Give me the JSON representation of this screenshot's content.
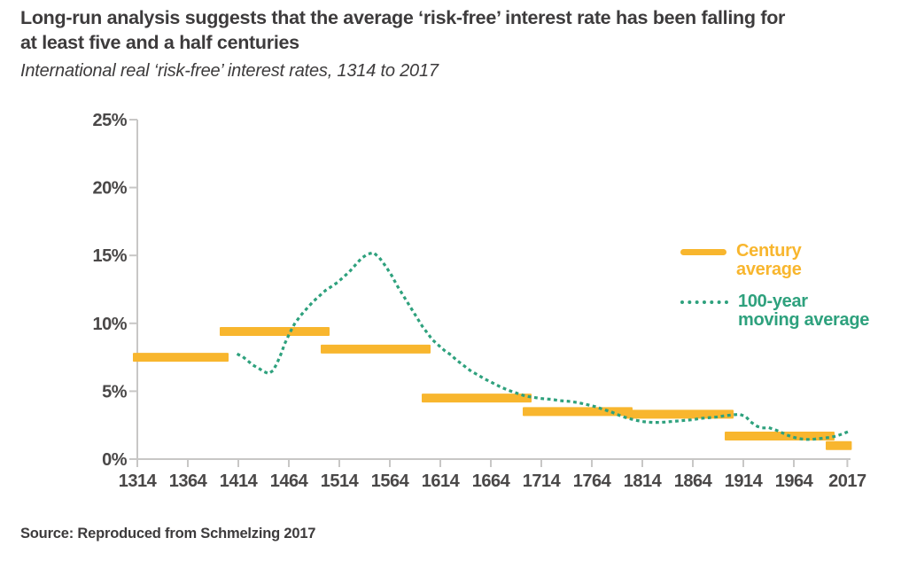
{
  "header": {
    "title_line1": "Long-run analysis suggests that the average ‘risk-free’ interest rate has been falling for",
    "title_line2": "at least five and a half centuries",
    "subtitle": "International real ‘risk-free’ interest rates, 1314 to 2017"
  },
  "source": "Source: Reproduced from Schmelzing 2017",
  "colors": {
    "century_average": "#F8B62E",
    "moving_average": "#2EA17D",
    "axis": "#C8C7C6",
    "tick_label": "#4A4848",
    "title_text": "#3D3B3C"
  },
  "chart_data": {
    "type": "combo",
    "title": "International real ‘risk-free’ interest rates, 1314 to 2017",
    "xlabel": "",
    "ylabel": "",
    "grid": "off",
    "legend_position": "right-middle",
    "x_axis": {
      "range": [
        1314,
        2020
      ],
      "ticks": [
        {
          "year": 1314,
          "label": "1314"
        },
        {
          "year": 1364,
          "label": "1364"
        },
        {
          "year": 1414,
          "label": "1414"
        },
        {
          "year": 1464,
          "label": "1464"
        },
        {
          "year": 1514,
          "label": "1514"
        },
        {
          "year": 1564,
          "label": "1564"
        },
        {
          "year": 1614,
          "label": "1614"
        },
        {
          "year": 1664,
          "label": "1664"
        },
        {
          "year": 1714,
          "label": "1714"
        },
        {
          "year": 1764,
          "label": "1764"
        },
        {
          "year": 1814,
          "label": "1814"
        },
        {
          "year": 1864,
          "label": "1864"
        },
        {
          "year": 1914,
          "label": "1914"
        },
        {
          "year": 1964,
          "label": "1964"
        },
        {
          "year": 2017,
          "label": "2017"
        }
      ]
    },
    "y_axis": {
      "range": [
        0,
        25
      ],
      "unit": "%",
      "ticks": [
        {
          "value": 0,
          "label": "0%"
        },
        {
          "value": 5,
          "label": "5%"
        },
        {
          "value": 10,
          "label": "10%"
        },
        {
          "value": 15,
          "label": "15%"
        },
        {
          "value": 20,
          "label": "20%"
        },
        {
          "value": 25,
          "label": "25%"
        }
      ]
    },
    "series": [
      {
        "name": "Century average",
        "type": "bar",
        "style": "horizontal-segments",
        "color": "#F8B62E",
        "unit": "%",
        "segments": [
          {
            "start": 1314,
            "end": 1400,
            "value": 7.5
          },
          {
            "start": 1400,
            "end": 1500,
            "value": 9.4
          },
          {
            "start": 1500,
            "end": 1600,
            "value": 8.1
          },
          {
            "start": 1600,
            "end": 1700,
            "value": 4.5
          },
          {
            "start": 1700,
            "end": 1800,
            "value": 3.5
          },
          {
            "start": 1800,
            "end": 1900,
            "value": 3.3
          },
          {
            "start": 1900,
            "end": 2000,
            "value": 1.7
          },
          {
            "start": 2000,
            "end": 2017,
            "value": 1.0
          }
        ]
      },
      {
        "name": "100-year moving average",
        "type": "line",
        "style": "dotted",
        "color": "#2EA17D",
        "unit": "%",
        "points": [
          [
            1414,
            7.7
          ],
          [
            1419,
            7.5
          ],
          [
            1424,
            7.2
          ],
          [
            1429,
            6.9
          ],
          [
            1434,
            6.7
          ],
          [
            1439,
            6.45
          ],
          [
            1444,
            6.3
          ],
          [
            1448,
            6.5
          ],
          [
            1452,
            7.0
          ],
          [
            1456,
            7.7
          ],
          [
            1460,
            8.5
          ],
          [
            1465,
            9.3
          ],
          [
            1470,
            10.0
          ],
          [
            1476,
            10.6
          ],
          [
            1482,
            11.1
          ],
          [
            1488,
            11.6
          ],
          [
            1494,
            12.0
          ],
          [
            1500,
            12.4
          ],
          [
            1506,
            12.7
          ],
          [
            1512,
            13.0
          ],
          [
            1518,
            13.4
          ],
          [
            1524,
            13.8
          ],
          [
            1530,
            14.3
          ],
          [
            1536,
            14.8
          ],
          [
            1542,
            15.1
          ],
          [
            1548,
            15.2
          ],
          [
            1554,
            14.8
          ],
          [
            1560,
            14.2
          ],
          [
            1566,
            13.5
          ],
          [
            1571,
            12.8
          ],
          [
            1576,
            12.2
          ],
          [
            1581,
            11.6
          ],
          [
            1586,
            11.0
          ],
          [
            1591,
            10.4
          ],
          [
            1596,
            9.8
          ],
          [
            1601,
            9.3
          ],
          [
            1606,
            8.8
          ],
          [
            1612,
            8.4
          ],
          [
            1618,
            8.0
          ],
          [
            1624,
            7.7
          ],
          [
            1630,
            7.3
          ],
          [
            1637,
            6.9
          ],
          [
            1644,
            6.5
          ],
          [
            1651,
            6.2
          ],
          [
            1658,
            5.9
          ],
          [
            1666,
            5.6
          ],
          [
            1674,
            5.3
          ],
          [
            1682,
            5.05
          ],
          [
            1690,
            4.85
          ],
          [
            1698,
            4.65
          ],
          [
            1706,
            4.55
          ],
          [
            1715,
            4.45
          ],
          [
            1724,
            4.4
          ],
          [
            1733,
            4.3
          ],
          [
            1742,
            4.25
          ],
          [
            1751,
            4.15
          ],
          [
            1760,
            4.0
          ],
          [
            1768,
            3.85
          ],
          [
            1776,
            3.65
          ],
          [
            1784,
            3.45
          ],
          [
            1792,
            3.2
          ],
          [
            1800,
            3.0
          ],
          [
            1808,
            2.85
          ],
          [
            1816,
            2.75
          ],
          [
            1824,
            2.7
          ],
          [
            1832,
            2.7
          ],
          [
            1840,
            2.75
          ],
          [
            1848,
            2.8
          ],
          [
            1856,
            2.85
          ],
          [
            1864,
            2.9
          ],
          [
            1872,
            3.0
          ],
          [
            1880,
            3.05
          ],
          [
            1888,
            3.1
          ],
          [
            1896,
            3.2
          ],
          [
            1903,
            3.25
          ],
          [
            1910,
            3.3
          ],
          [
            1916,
            3.15
          ],
          [
            1922,
            2.7
          ],
          [
            1928,
            2.4
          ],
          [
            1934,
            2.3
          ],
          [
            1940,
            2.3
          ],
          [
            1946,
            2.15
          ],
          [
            1952,
            1.95
          ],
          [
            1958,
            1.75
          ],
          [
            1964,
            1.6
          ],
          [
            1970,
            1.5
          ],
          [
            1976,
            1.45
          ],
          [
            1982,
            1.45
          ],
          [
            1988,
            1.5
          ],
          [
            1994,
            1.55
          ],
          [
            2000,
            1.6
          ],
          [
            2006,
            1.7
          ],
          [
            2012,
            1.85
          ],
          [
            2017,
            2.0
          ]
        ]
      }
    ]
  }
}
